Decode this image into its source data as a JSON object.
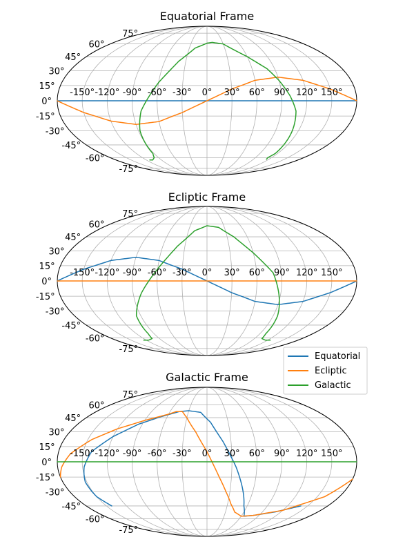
{
  "series_meta": [
    {
      "name": "Equatorial",
      "color": "#1f77b4"
    },
    {
      "name": "Ecliptic",
      "color": "#ff7f0e"
    },
    {
      "name": "Galactic",
      "color": "#2ca02c"
    }
  ],
  "legend": {
    "placement": "between-second-and-third-panel-right",
    "entries": [
      "Equatorial",
      "Ecliptic",
      "Galactic"
    ]
  },
  "chart_data": [
    {
      "type": "line",
      "projection": "mollweide",
      "title": "Equatorial Frame",
      "grid": true,
      "xlim": [
        -180,
        180
      ],
      "ylim": [
        -90,
        90
      ],
      "lon_ticks": [
        "-150°",
        "-120°",
        "-90°",
        "-60°",
        "-30°",
        "0°",
        "30°",
        "60°",
        "90°",
        "120°",
        "150°"
      ],
      "lat_ticks": [
        "-75°",
        "-60°",
        "-45°",
        "-30°",
        "-15°",
        "0°",
        "15°",
        "30°",
        "45°",
        "60°",
        "75°"
      ],
      "series": [
        {
          "name": "Equatorial",
          "lon": [
            -180,
            180
          ],
          "lat": [
            0,
            0
          ]
        },
        {
          "name": "Ecliptic",
          "lon": [
            -180,
            -150,
            -120,
            -90,
            -60,
            -30,
            0,
            30,
            60,
            90,
            120,
            150,
            180
          ],
          "lat": [
            0,
            -11.5,
            -20,
            -23.4,
            -20.5,
            -11.5,
            0,
            11.5,
            20.2,
            23.4,
            20.2,
            11.5,
            0
          ]
        },
        {
          "name": "Galactic",
          "lon": [
            -113,
            -107,
            -98,
            -92,
            -88,
            -80,
            -60,
            -40,
            -20,
            0,
            10,
            30,
            60,
            80,
            90,
            100,
            108,
            112,
            116,
            113,
            115
          ],
          "lat": [
            -63,
            -63,
            -60,
            -55,
            -30,
            -10,
            18,
            40,
            55,
            61,
            62,
            60,
            45,
            32,
            20,
            5,
            -10,
            -30,
            -55,
            -60,
            -62
          ]
        }
      ]
    },
    {
      "type": "line",
      "projection": "mollweide",
      "title": "Ecliptic Frame",
      "grid": true,
      "xlim": [
        -180,
        180
      ],
      "ylim": [
        -90,
        90
      ],
      "lon_ticks": [
        "-150°",
        "-120°",
        "-90°",
        "-60°",
        "-30°",
        "0°",
        "30°",
        "60°",
        "90°",
        "120°",
        "150°"
      ],
      "lat_ticks": [
        "-75°",
        "-60°",
        "-45°",
        "-30°",
        "-15°",
        "0°",
        "15°",
        "30°",
        "45°",
        "60°",
        "75°"
      ],
      "series": [
        {
          "name": "Equatorial",
          "lon": [
            -180,
            -150,
            -120,
            -90,
            -60,
            -30,
            0,
            30,
            60,
            90,
            120,
            150,
            180
          ],
          "lat": [
            0,
            11.5,
            20.2,
            23.4,
            20.2,
            11.5,
            0,
            -11.5,
            -20.2,
            -23.4,
            -20.2,
            -11.5,
            0
          ]
        },
        {
          "name": "Ecliptic",
          "lon": [
            -180,
            180
          ],
          "lat": [
            0,
            0
          ]
        },
        {
          "name": "Galactic",
          "lon": [
            -125,
            -115,
            -104,
            -100,
            -96,
            -80,
            -60,
            -40,
            -20,
            0,
            20,
            40,
            60,
            80,
            96,
            100,
            104,
            115,
            125
          ],
          "lat": [
            -63,
            -63,
            -61,
            -55,
            -35,
            -12,
            12,
            35,
            52,
            58,
            56,
            45,
            28,
            8,
            -35,
            -55,
            -61,
            -63,
            -63
          ]
        }
      ]
    },
    {
      "type": "line",
      "projection": "mollweide",
      "title": "Galactic Frame",
      "grid": true,
      "xlim": [
        -180,
        180
      ],
      "ylim": [
        -90,
        90
      ],
      "lon_ticks": [
        "-150°",
        "-120°",
        "-90°",
        "-60°",
        "-30°",
        "0°",
        "30°",
        "60°",
        "90°",
        "120°",
        "150°"
      ],
      "lat_ticks": [
        "-75°",
        "-60°",
        "-45°",
        "-30°",
        "-15°",
        "0°",
        "15°",
        "30°",
        "45°",
        "60°",
        "75°"
      ],
      "series": [
        {
          "name": "Equatorial",
          "lon": [
            -142,
            -150,
            -152,
            -148,
            -140,
            -120,
            -95,
            -70,
            -45,
            -30,
            -10,
            5,
            20,
            35,
            45,
            55,
            65,
            80,
            110,
            140
          ],
          "lat": [
            -45,
            -35,
            -20,
            -5,
            10,
            25,
            38,
            46,
            52,
            53,
            51,
            40,
            20,
            -5,
            -25,
            -45,
            -57,
            -56,
            -52,
            -45
          ]
        },
        {
          "name": "Ecliptic",
          "lon": [
            -180,
            -175,
            -165,
            -145,
            -120,
            -90,
            -60,
            -50,
            -40,
            -30,
            -15,
            0,
            15,
            25,
            35,
            45,
            60,
            80,
            120,
            160,
            180
          ],
          "lat": [
            -15,
            -5,
            8,
            22,
            33,
            42,
            49,
            52,
            52,
            45,
            30,
            10,
            -15,
            -30,
            -43,
            -52,
            -57,
            -56,
            -50,
            -35,
            -17
          ]
        },
        {
          "name": "Galactic",
          "lon": [
            -180,
            180
          ],
          "lat": [
            0,
            0
          ]
        }
      ]
    }
  ]
}
